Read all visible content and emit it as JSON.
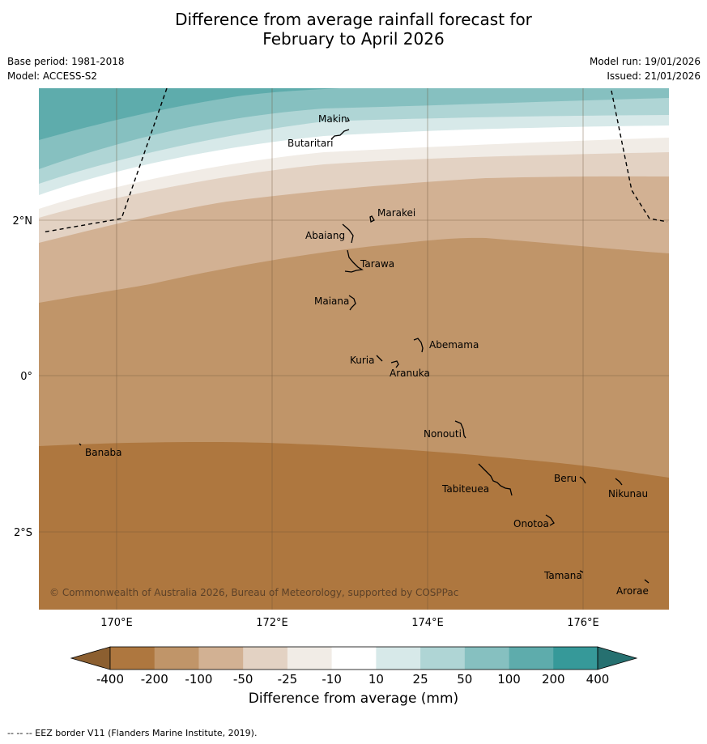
{
  "title": {
    "line1": "Difference from average rainfall forecast for",
    "line2": "February to April 2026"
  },
  "meta": {
    "base_period": "Base period: 1981-2018",
    "model": "Model: ACCESS-S2",
    "model_run": "Model run: 19/01/2026",
    "issued": "Issued: 21/01/2026"
  },
  "map": {
    "x_ticks": [
      "170°E",
      "172°E",
      "174°E",
      "176°E"
    ],
    "y_ticks": [
      "2°N",
      "0°",
      "2°S"
    ],
    "copyright": "© Commonwealth of Australia 2026, Bureau of Meteorology, supported by COSPPac",
    "places": [
      "Makin",
      "Butaritari",
      "Marakei",
      "Abaiang",
      "Tarawa",
      "Maiana",
      "Abemama",
      "Kuria",
      "Aranuka",
      "Nonouti",
      "Banaba",
      "Tabiteuea",
      "Beru",
      "Nikunau",
      "Onotoa",
      "Tamana",
      "Arorae"
    ]
  },
  "legend": {
    "labels": [
      "-400",
      "-200",
      "-100",
      "-50",
      "-25",
      "-10",
      "10",
      "25",
      "50",
      "100",
      "200",
      "400"
    ],
    "colors": [
      "#8c5f30",
      "#ae773f",
      "#c09569",
      "#d2b193",
      "#e3d2c3",
      "#f1ece6",
      "#ffffff",
      "#d7e9e9",
      "#afd5d5",
      "#86c0c0",
      "#5eacac",
      "#369999",
      "#267070"
    ],
    "title": "Difference from average (mm)"
  },
  "footer": "--  --  -- EEZ border V11 (Flanders Marine Institute, 2019)."
}
